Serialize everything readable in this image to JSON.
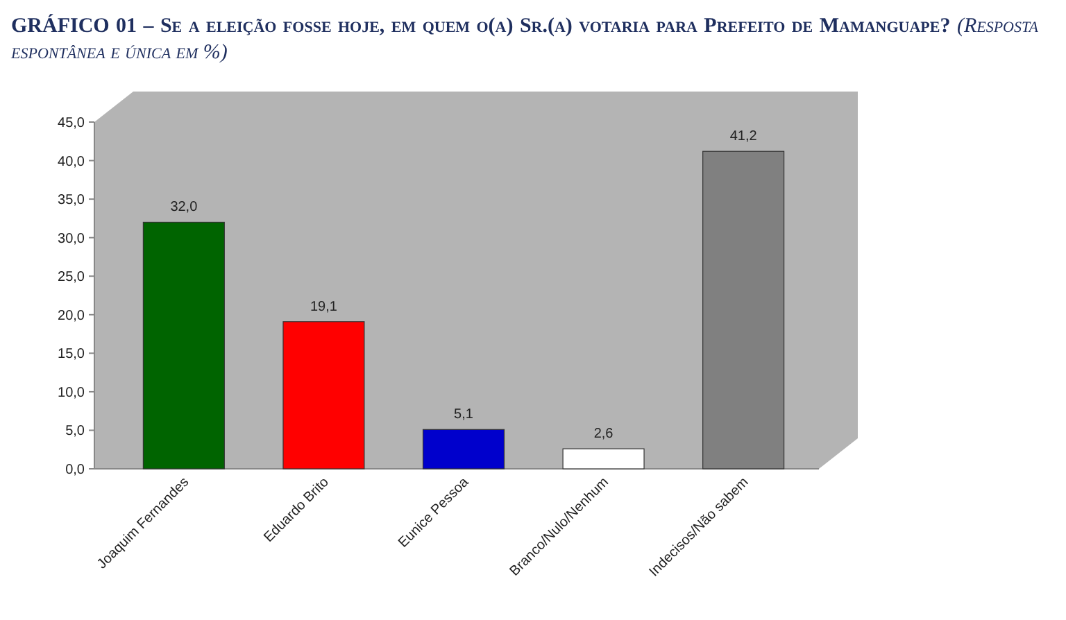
{
  "chart_data": {
    "type": "bar",
    "title": "GRÁFICO 01 – Se a eleição fosse hoje, em quem o(a) Sr.(a) votaria para Prefeito de Mamanguape?",
    "subtitle": "(Resposta espontânea e única em %)",
    "categories": [
      "Joaquim Fernandes",
      "Eduardo Brito",
      "Eunice Pessoa",
      "Branco/Nulo/Nenhum",
      "Indecisos/Não sabem"
    ],
    "values": [
      32.0,
      19.1,
      5.1,
      2.6,
      41.2
    ],
    "value_labels": [
      "32,0",
      "19,1",
      "5,1",
      "2,6",
      "41,2"
    ],
    "colors": [
      "#006400",
      "#ff0000",
      "#0000cc",
      "#ffffff",
      "#808080"
    ],
    "ylim": [
      0,
      45
    ],
    "yticks": [
      {
        "value": 0,
        "label": "0,0"
      },
      {
        "value": 5,
        "label": "5,0"
      },
      {
        "value": 10,
        "label": "10,0"
      },
      {
        "value": 15,
        "label": "15,0"
      },
      {
        "value": 20,
        "label": "20,0"
      },
      {
        "value": 25,
        "label": "25,0"
      },
      {
        "value": 30,
        "label": "30,0"
      },
      {
        "value": 35,
        "label": "35,0"
      },
      {
        "value": 40,
        "label": "40,0"
      },
      {
        "value": 45,
        "label": "45,0"
      }
    ],
    "grid": false
  }
}
